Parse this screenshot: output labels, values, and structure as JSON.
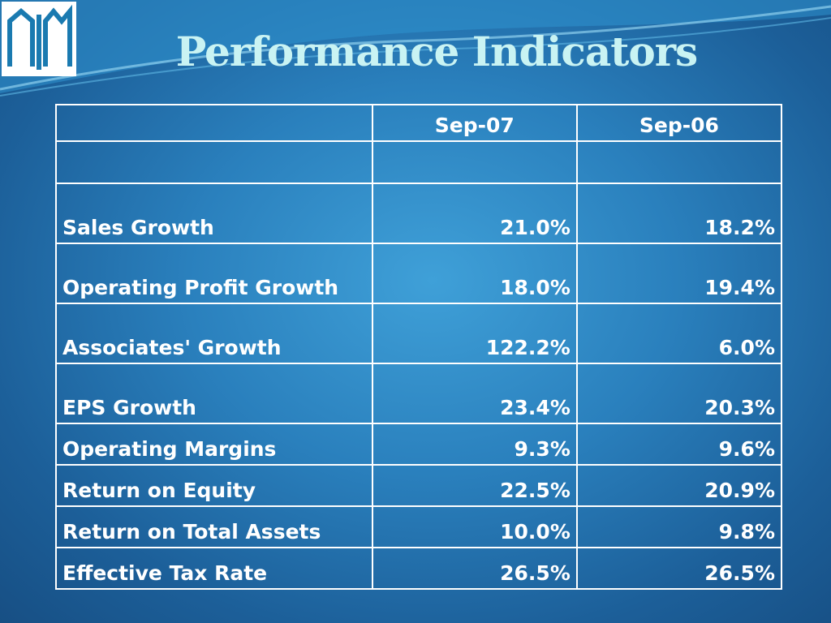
{
  "logo": {
    "text": "AIM"
  },
  "title": "Performance Indicators",
  "table": {
    "columns": [
      "",
      "Sep-07",
      "Sep-06"
    ],
    "rows": [
      {
        "label": "",
        "sep07": "",
        "sep06": ""
      },
      {
        "label": "Sales Growth",
        "sep07": "21.0%",
        "sep06": "18.2%"
      },
      {
        "label": "Operating Profit Growth",
        "sep07": "18.0%",
        "sep06": "19.4%"
      },
      {
        "label": "Associates' Growth",
        "sep07": "122.2%",
        "sep06": "6.0%"
      },
      {
        "label": "EPS Growth",
        "sep07": "23.4%",
        "sep06": "20.3%"
      },
      {
        "label": "Operating Margins",
        "sep07": "9.3%",
        "sep06": "9.6%"
      },
      {
        "label": "Return on Equity",
        "sep07": "22.5%",
        "sep06": "20.9%"
      },
      {
        "label": "Return on Total Assets",
        "sep07": "10.0%",
        "sep06": "9.8%"
      },
      {
        "label": "Effective Tax Rate",
        "sep07": "26.5%",
        "sep06": "26.5%"
      }
    ]
  },
  "colors": {
    "title": "#c9f3f3",
    "logo_mark": "#1a7ab0",
    "background": "#2a80bd",
    "grid": "#ffffff"
  }
}
